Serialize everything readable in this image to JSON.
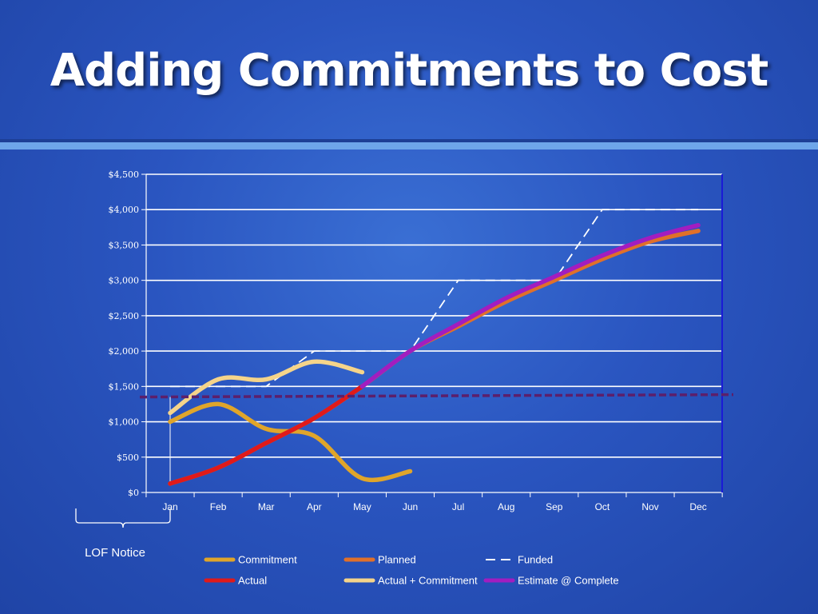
{
  "slide": {
    "title": "Adding Commitments to Cost",
    "annotation": "LOF Notice"
  },
  "chart_data": {
    "type": "line",
    "categories": [
      "Jan",
      "Feb",
      "Mar",
      "Apr",
      "May",
      "Jun",
      "Jul",
      "Aug",
      "Sep",
      "Oct",
      "Nov",
      "Dec"
    ],
    "ylim": [
      0,
      4500
    ],
    "yticks": [
      0,
      500,
      1000,
      1500,
      2000,
      2500,
      3000,
      3500,
      4000,
      4500
    ],
    "ytick_labels": [
      "$0",
      "$500",
      "$1,000",
      "$1,500",
      "$2,000",
      "$2,500",
      "$3,000",
      "$3,500",
      "$4,000",
      "$4,500"
    ],
    "grid": true,
    "legend_position": "bottom",
    "series": [
      {
        "name": "Commitment",
        "color": "#e0a52a",
        "style": "solid",
        "x": [
          0,
          1,
          2,
          3,
          4,
          5
        ],
        "values": [
          1000,
          1250,
          900,
          800,
          200,
          300
        ]
      },
      {
        "name": "Planned",
        "color": "#e0702a",
        "style": "solid",
        "x": [
          0,
          1,
          2,
          3,
          4,
          5,
          6,
          7,
          8,
          9,
          10,
          11
        ],
        "values": [
          125,
          350,
          700,
          1050,
          1500,
          2000,
          2350,
          2700,
          3000,
          3300,
          3550,
          3700
        ]
      },
      {
        "name": "Funded",
        "color": "#ffffff",
        "style": "dashed",
        "x": [
          0,
          1,
          2,
          3,
          4,
          5,
          6,
          7,
          8,
          9,
          10,
          11
        ],
        "values": [
          1500,
          1500,
          1500,
          2000,
          2000,
          2000,
          3000,
          3000,
          3000,
          4000,
          4000,
          4000
        ]
      },
      {
        "name": "Actual",
        "color": "#e01a1a",
        "style": "solid",
        "x": [
          0,
          1,
          2,
          3,
          4
        ],
        "values": [
          125,
          350,
          700,
          1050,
          1500
        ]
      },
      {
        "name": "Actual + Commitment",
        "color": "#f5d48a",
        "style": "solid",
        "x": [
          0,
          1,
          2,
          3,
          4
        ],
        "values": [
          1125,
          1600,
          1600,
          1850,
          1700
        ]
      },
      {
        "name": "Estimate @ Complete",
        "color": "#a21dc0",
        "style": "solid",
        "x": [
          4,
          5,
          6,
          7,
          8,
          9,
          10,
          11
        ],
        "values": [
          1500,
          2000,
          2380,
          2750,
          3050,
          3350,
          3600,
          3780
        ]
      }
    ],
    "threshold_line": {
      "value": 1350,
      "color": "#5c1f6b",
      "style": "dashed"
    }
  }
}
